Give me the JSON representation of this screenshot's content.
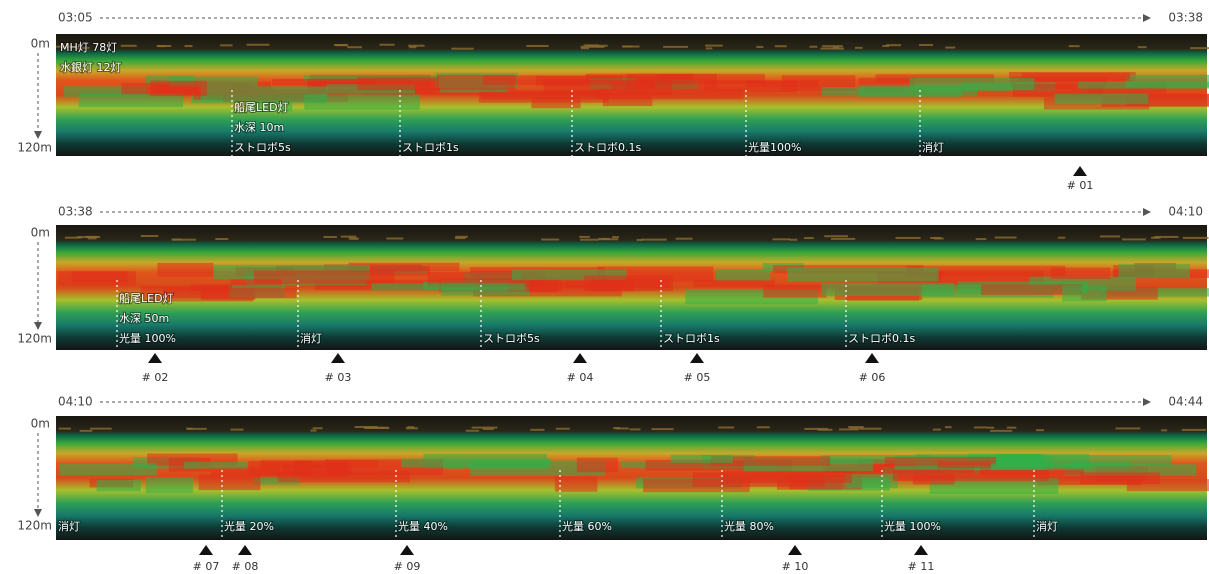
{
  "panels": [
    {
      "start": "03:05",
      "end": "03:38",
      "depth_top": "0m",
      "depth_bottom": "120m",
      "top_left": [
        "MH灯 78灯",
        "水銀灯 12灯"
      ],
      "annotations": [
        [
          "船尾LED灯",
          "水深 10m",
          "ストロボ5s"
        ],
        [
          "ストロボ1s"
        ],
        [
          "ストロボ0.1s"
        ],
        [
          "光量100%"
        ],
        [
          "消灯"
        ]
      ],
      "markers": [
        "# 01"
      ]
    },
    {
      "start": "03:38",
      "end": "04:10",
      "depth_top": "0m",
      "depth_bottom": "120m",
      "top_left": [],
      "annotations": [
        [
          "船尾LED灯",
          "水深 50m",
          "光量 100%"
        ],
        [
          "消灯"
        ],
        [
          "ストロボ5s"
        ],
        [
          "ストロボ1s"
        ],
        [
          "ストロボ0.1s"
        ]
      ],
      "markers": [
        "# 02",
        "# 03",
        "# 04",
        "# 05",
        "# 06"
      ]
    },
    {
      "start": "04:10",
      "end": "04:44",
      "depth_top": "0m",
      "depth_bottom": "120m",
      "top_left": [],
      "annotations": [
        [
          "消灯"
        ],
        [
          "光量 20%"
        ],
        [
          "光量 40%"
        ],
        [
          "光量 60%"
        ],
        [
          "光量 80%"
        ],
        [
          "光量 100%"
        ],
        [
          "消灯"
        ]
      ],
      "markers": [
        "# 07",
        "# 08",
        "# 09",
        "# 10",
        "# 11"
      ]
    }
  ]
}
